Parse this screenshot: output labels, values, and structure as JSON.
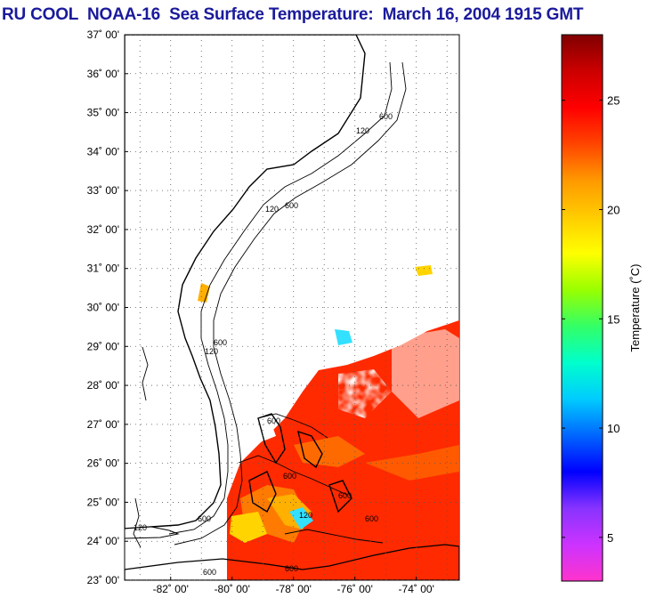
{
  "title": "RU COOL  NOAA-16  Sea Surface Temperature:  March 16, 2004 1915 GMT",
  "map": {
    "lat_ticks": [
      "37˚ 00'",
      "36˚ 00'",
      "35˚ 00'",
      "34˚ 00'",
      "33˚ 00'",
      "32˚ 00'",
      "31˚ 00'",
      "30˚ 00'",
      "29˚ 00'",
      "28˚ 00'",
      "27˚ 00'",
      "26˚ 00'",
      "25˚ 00'",
      "24˚ 00'",
      "23˚ 00'"
    ],
    "lon_ticks": [
      "-82˚ 00'",
      "-80˚ 00'",
      "-78˚ 00'",
      "-76˚ 00'",
      "-74˚ 00'"
    ],
    "lat_range": [
      23,
      37
    ],
    "lon_range": [
      -83.5,
      -72.6
    ],
    "grid": true,
    "contour_labels": [
      "600",
      "120",
      "600",
      "120",
      "600",
      "120",
      "600",
      "120",
      "600",
      "600",
      "600",
      "120",
      "600",
      "600",
      "600"
    ]
  },
  "colorbar": {
    "label": "Temperature (˚C)",
    "ticks": [
      "25",
      "20",
      "15",
      "10",
      "5"
    ],
    "tick_values": [
      25,
      20,
      15,
      10,
      5
    ],
    "range": [
      3,
      28
    ],
    "colors": [
      "#ff33cc",
      "#cc33ff",
      "#8833ff",
      "#0000ff",
      "#0066ff",
      "#00ccff",
      "#00ffcc",
      "#33ff66",
      "#99ff00",
      "#ffff00",
      "#ffcc00",
      "#ff9900",
      "#ff4400",
      "#ff0000",
      "#cc0000",
      "#800000"
    ]
  },
  "colors": {
    "title": "#1a1a9c",
    "sst_warm": "#ff2a00",
    "sst_orange": "#ff7a00",
    "sst_yellow": "#ffd400",
    "sst_cyan": "#33e0ff"
  }
}
